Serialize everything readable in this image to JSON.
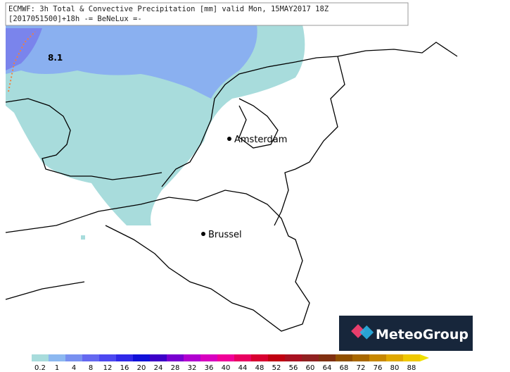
{
  "header": {
    "line1": "ECMWF: 3h Total & Convective Precipitation [mm] valid Mon, 15MAY2017 18Z",
    "line2": "[2017051500]+18h -= BeNeLux =-"
  },
  "annotation": "8.1",
  "cities": [
    {
      "name": "Amsterdam"
    },
    {
      "name": "Brussel"
    }
  ],
  "logo": "MeteoGroup",
  "legend": {
    "labels": [
      "0.2",
      "1",
      "4",
      "8",
      "12",
      "16",
      "20",
      "24",
      "28",
      "32",
      "36",
      "40",
      "44",
      "48",
      "52",
      "56",
      "60",
      "64",
      "68",
      "72",
      "76",
      "80",
      "88"
    ],
    "colors": [
      "#a8dcdc",
      "#8cb8f0",
      "#7890f0",
      "#6468f0",
      "#4c48f0",
      "#3028e8",
      "#1010d8",
      "#3c00c8",
      "#7800d0",
      "#b000d0",
      "#d800c0",
      "#f00098",
      "#e80060",
      "#d80030",
      "#c00010",
      "#a81020",
      "#902020",
      "#803010",
      "#905000",
      "#a86800",
      "#c88800",
      "#e0a800",
      "#f0c800"
    ]
  }
}
